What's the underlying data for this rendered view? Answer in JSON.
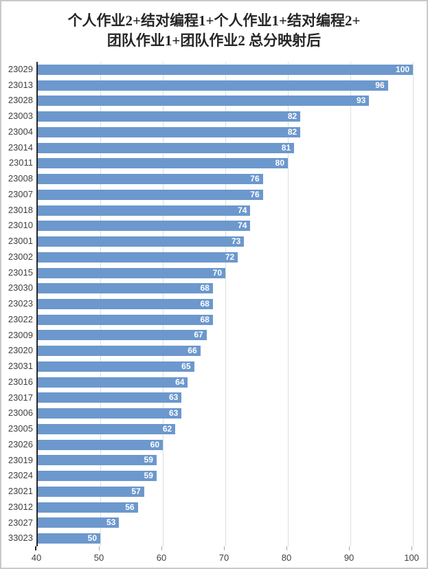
{
  "window": {
    "background": "#ffffff",
    "border_color": "#c9c9c9"
  },
  "chart_data": {
    "type": "bar",
    "orientation": "horizontal",
    "title": "个人作业2+结对编程1+个人作业1+结对编程2+团队作业1+团队作业2 总分映射后",
    "title_lines": [
      "个人作业2+结对编程1+个人作业1+结对编程2+",
      "团队作业1+团队作业2 总分映射后"
    ],
    "categories": [
      "23029",
      "23013",
      "23028",
      "23003",
      "23004",
      "23014",
      "23011",
      "23008",
      "23007",
      "23018",
      "23010",
      "23001",
      "23002",
      "23015",
      "23030",
      "23023",
      "23022",
      "23009",
      "23020",
      "23031",
      "23016",
      "23017",
      "23006",
      "23005",
      "23026",
      "23019",
      "23024",
      "23021",
      "23012",
      "23027",
      "33023"
    ],
    "values": [
      100,
      96,
      93,
      82,
      82,
      81,
      80,
      76,
      76,
      74,
      74,
      73,
      72,
      70,
      68,
      68,
      68,
      67,
      66,
      65,
      64,
      63,
      63,
      62,
      60,
      59,
      59,
      57,
      56,
      53,
      50
    ],
    "x_ticks": [
      40,
      50,
      60,
      70,
      80,
      90,
      100
    ],
    "xlim": [
      40,
      102.3
    ],
    "xlabel": "",
    "ylabel": "",
    "grid": true,
    "legend": "none",
    "data_labels": "inside-end",
    "colors": {
      "bar": "#6c98cd",
      "data_label": "#ffffff",
      "gridline": "#d6e3d6",
      "axis_line": "#262626",
      "tick": "#a6a6a6",
      "axis_text": "#404040",
      "title_text": "#262626"
    }
  }
}
